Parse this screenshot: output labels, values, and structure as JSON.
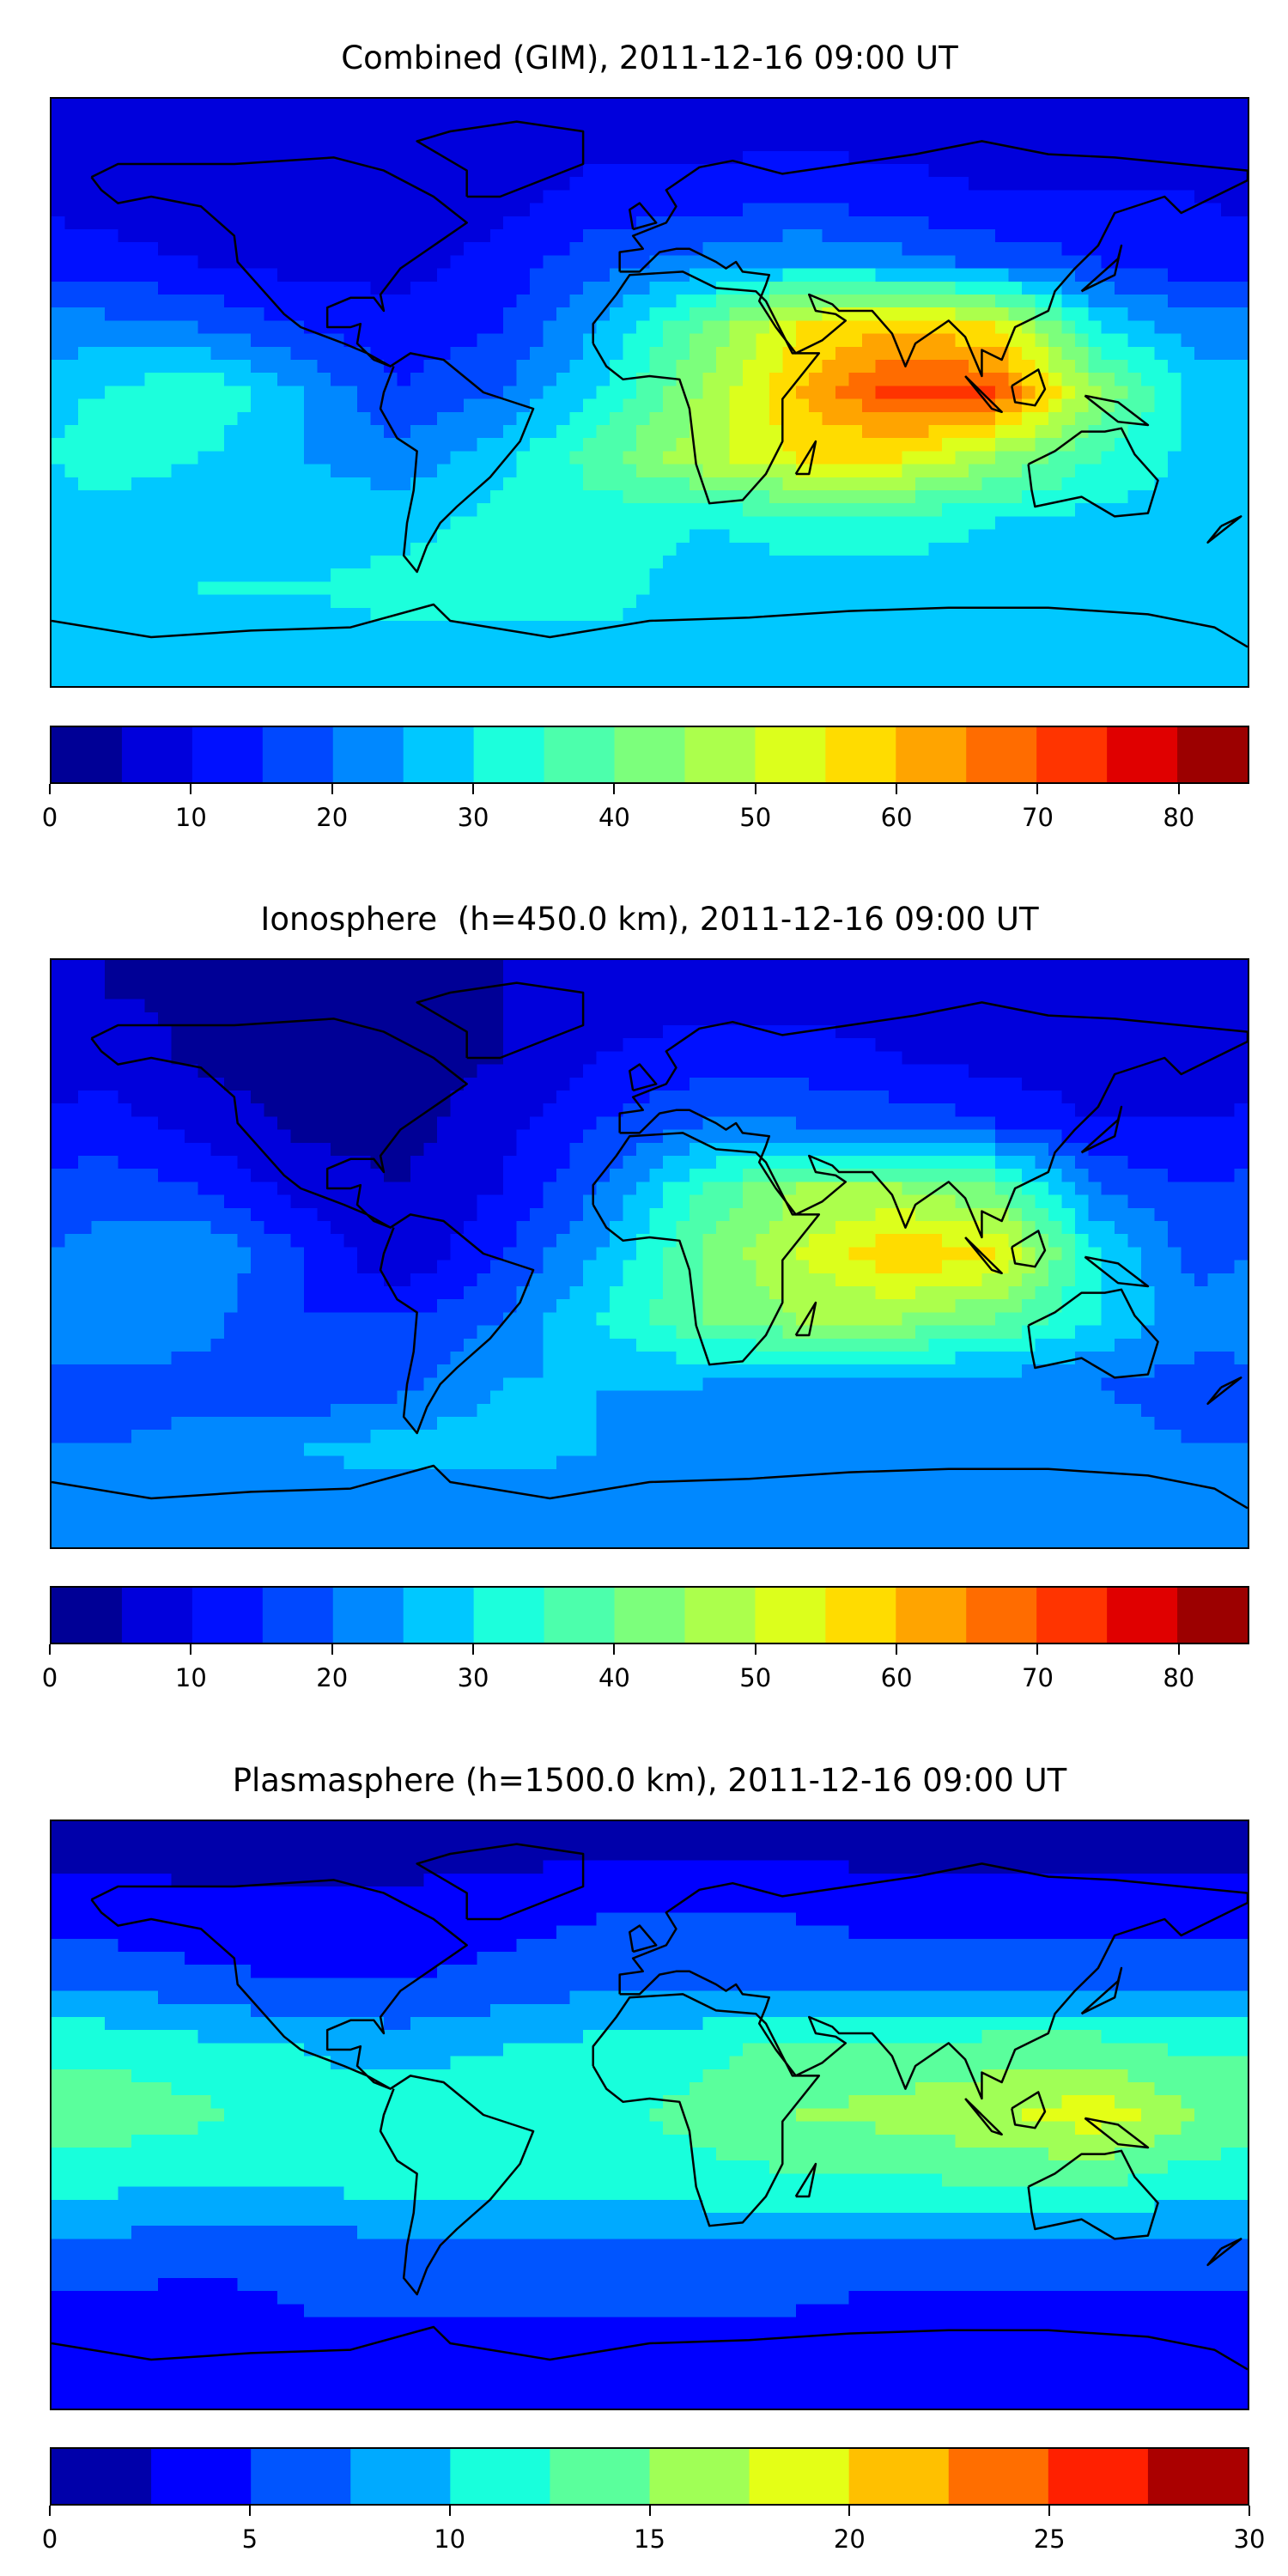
{
  "chart_data": [
    {
      "type": "heatmap",
      "title": "Combined (GIM), 2011-12-16 09:00 UT",
      "lat": [
        80,
        60,
        40,
        20,
        0,
        -20,
        -40,
        -60,
        -80
      ],
      "lon": [
        -165,
        -135,
        -105,
        -75,
        -45,
        -15,
        15,
        45,
        75,
        105,
        135,
        165
      ],
      "values": [
        [
          5,
          5,
          5,
          5,
          7,
          8,
          8,
          8,
          8,
          8,
          8,
          7
        ],
        [
          8,
          5,
          5,
          5,
          8,
          12,
          12,
          14,
          12,
          10,
          10,
          10
        ],
        [
          12,
          10,
          8,
          8,
          12,
          18,
          22,
          25,
          22,
          18,
          15,
          12
        ],
        [
          22,
          20,
          15,
          12,
          15,
          25,
          40,
          55,
          60,
          55,
          30,
          22
        ],
        [
          30,
          35,
          25,
          15,
          20,
          30,
          45,
          60,
          72,
          70,
          45,
          28
        ],
        [
          32,
          30,
          25,
          22,
          28,
          38,
          48,
          55,
          55,
          45,
          35,
          28
        ],
        [
          28,
          28,
          28,
          28,
          32,
          32,
          30,
          32,
          32,
          30,
          28,
          28
        ],
        [
          28,
          30,
          30,
          32,
          32,
          32,
          28,
          28,
          28,
          28,
          28,
          28
        ],
        [
          28,
          28,
          28,
          28,
          28,
          28,
          28,
          28,
          28,
          28,
          28,
          28
        ]
      ],
      "levels": [
        0,
        5,
        10,
        15,
        20,
        25,
        30,
        35,
        40,
        45,
        50,
        55,
        60,
        65,
        70,
        75,
        80,
        85
      ],
      "colors": [
        "#000096",
        "#0000dc",
        "#0010ff",
        "#0048ff",
        "#0088ff",
        "#00c8ff",
        "#1cffdc",
        "#4cffac",
        "#7cff7c",
        "#acff4c",
        "#dcff1c",
        "#ffdc00",
        "#ffa400",
        "#ff6c00",
        "#ff3400",
        "#e00000",
        "#9c0000"
      ],
      "colorbar": {
        "range": [
          0,
          85
        ],
        "ticks": [
          "0",
          "10",
          "20",
          "30",
          "40",
          "50",
          "60",
          "70",
          "80"
        ],
        "tick_values": [
          0,
          10,
          20,
          30,
          40,
          50,
          60,
          70,
          80
        ]
      }
    },
    {
      "type": "heatmap",
      "title": "Ionosphere  (h=450.0 km), 2011-12-16 09:00 UT",
      "lat": [
        80,
        60,
        40,
        20,
        0,
        -20,
        -40,
        -60,
        -80
      ],
      "lon": [
        -165,
        -135,
        -105,
        -75,
        -45,
        -15,
        15,
        45,
        75,
        105,
        135,
        165
      ],
      "values": [
        [
          5,
          4,
          3,
          3,
          5,
          8,
          8,
          8,
          8,
          6,
          5,
          5
        ],
        [
          8,
          4,
          3,
          3,
          5,
          10,
          12,
          12,
          10,
          8,
          6,
          6
        ],
        [
          12,
          8,
          4,
          3,
          8,
          15,
          20,
          20,
          18,
          15,
          10,
          10
        ],
        [
          18,
          15,
          8,
          5,
          10,
          20,
          35,
          45,
          45,
          40,
          20,
          15
        ],
        [
          22,
          25,
          15,
          5,
          15,
          25,
          40,
          50,
          60,
          55,
          30,
          18
        ],
        [
          25,
          22,
          15,
          15,
          20,
          30,
          40,
          45,
          45,
          40,
          30,
          22
        ],
        [
          18,
          18,
          15,
          18,
          25,
          25,
          25,
          22,
          22,
          22,
          20,
          18
        ],
        [
          20,
          22,
          25,
          28,
          28,
          25,
          22,
          22,
          20,
          22,
          22,
          20
        ],
        [
          20,
          20,
          20,
          20,
          20,
          20,
          20,
          20,
          20,
          20,
          20,
          20
        ]
      ],
      "levels": [
        0,
        5,
        10,
        15,
        20,
        25,
        30,
        35,
        40,
        45,
        50,
        55,
        60,
        65,
        70,
        75,
        80,
        85
      ],
      "colors": [
        "#000096",
        "#0000dc",
        "#0010ff",
        "#0048ff",
        "#0088ff",
        "#00c8ff",
        "#1cffdc",
        "#4cffac",
        "#7cff7c",
        "#acff4c",
        "#dcff1c",
        "#ffdc00",
        "#ffa400",
        "#ff6c00",
        "#ff3400",
        "#e00000",
        "#9c0000"
      ],
      "colorbar": {
        "range": [
          0,
          85
        ],
        "ticks": [
          "0",
          "10",
          "20",
          "30",
          "40",
          "50",
          "60",
          "70",
          "80"
        ],
        "tick_values": [
          0,
          10,
          20,
          30,
          40,
          50,
          60,
          70,
          80
        ]
      }
    },
    {
      "type": "heatmap",
      "title": "Plasmasphere (h=1500.0 km), 2011-12-16 09:00 UT",
      "lat": [
        80,
        60,
        40,
        20,
        0,
        -20,
        -40,
        -60,
        -80
      ],
      "lon": [
        -165,
        -135,
        -105,
        -75,
        -45,
        -15,
        15,
        45,
        75,
        105,
        135,
        165
      ],
      "values": [
        [
          2,
          2,
          2,
          2,
          2,
          2,
          2,
          2,
          2,
          2,
          2,
          2
        ],
        [
          4,
          3,
          3,
          3,
          4,
          5,
          5,
          5,
          4,
          4,
          4,
          4
        ],
        [
          7,
          6,
          5,
          5,
          6,
          7,
          7,
          7,
          7,
          7,
          7,
          7
        ],
        [
          12,
          11,
          10,
          9,
          10,
          11,
          12,
          13,
          13,
          14,
          14,
          12
        ],
        [
          14,
          13,
          11,
          12,
          12,
          12,
          13,
          15,
          16,
          17,
          19,
          15
        ],
        [
          11,
          10,
          10,
          12,
          11,
          11,
          12,
          12,
          12,
          13,
          13,
          11
        ],
        [
          7,
          6,
          6,
          7,
          7,
          7,
          7,
          7,
          7,
          7,
          7,
          7
        ],
        [
          4,
          4,
          5,
          5,
          5,
          5,
          5,
          5,
          4,
          4,
          4,
          4
        ],
        [
          3,
          3,
          3,
          3,
          3,
          3,
          3,
          3,
          3,
          3,
          3,
          3
        ]
      ],
      "levels": [
        0,
        2.5,
        5,
        7.5,
        10,
        12.5,
        15,
        17.5,
        20,
        22.5,
        25,
        27.5,
        30
      ],
      "colors": [
        "#0000aa",
        "#0000ff",
        "#0055ff",
        "#00aaff",
        "#18ffdc",
        "#5aff9c",
        "#a0ff56",
        "#e4ff16",
        "#ffc000",
        "#ff6e00",
        "#ff2000",
        "#aa0000"
      ],
      "colorbar": {
        "range": [
          0,
          30
        ],
        "ticks": [
          "0",
          "5",
          "10",
          "15",
          "20",
          "25",
          "30"
        ],
        "tick_values": [
          0,
          5,
          10,
          15,
          20,
          25,
          30
        ]
      }
    }
  ]
}
